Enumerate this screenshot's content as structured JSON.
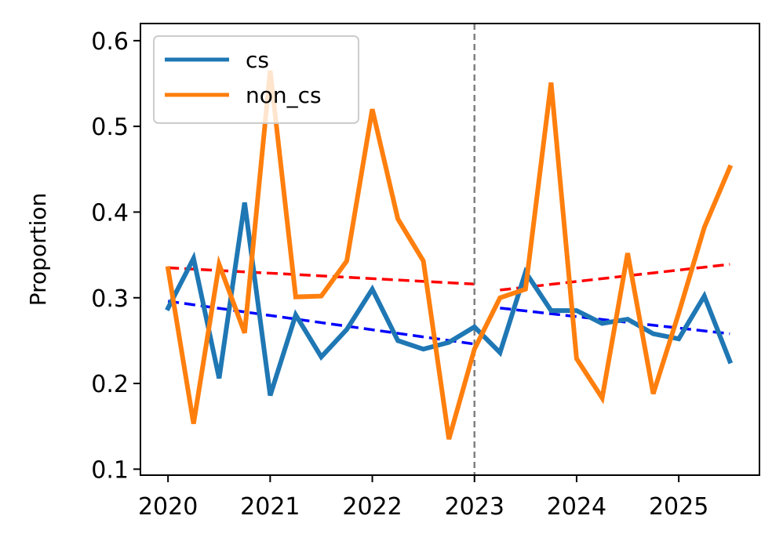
{
  "chart_data": {
    "type": "line",
    "title": "",
    "xlabel": "",
    "ylabel": "Proportion",
    "xlim": [
      2019.73,
      2025.79
    ],
    "ylim": [
      0.093,
      0.62
    ],
    "xticks": [
      2020,
      2021,
      2022,
      2023,
      2024,
      2025
    ],
    "yticks": [
      0.1,
      0.2,
      0.3,
      0.4,
      0.5,
      0.6
    ],
    "ytick_labels": [
      "0.1",
      "0.2",
      "0.3",
      "0.4",
      "0.5",
      "0.6"
    ],
    "x": [
      2020.0,
      2020.25,
      2020.5,
      2020.75,
      2021.0,
      2021.25,
      2021.5,
      2021.75,
      2022.0,
      2022.25,
      2022.5,
      2022.75,
      2023.0,
      2023.25,
      2023.5,
      2023.75,
      2024.0,
      2024.25,
      2024.5,
      2024.75,
      2025.0,
      2025.25,
      2025.5
    ],
    "series": [
      {
        "name": "cs",
        "color": "#1f77b4",
        "values": [
          0.288,
          0.346,
          0.206,
          0.411,
          0.186,
          0.28,
          0.231,
          0.263,
          0.31,
          0.25,
          0.24,
          0.248,
          0.266,
          0.236,
          0.33,
          0.285,
          0.285,
          0.27,
          0.275,
          0.258,
          0.252,
          0.302,
          0.226
        ]
      },
      {
        "name": "non_cs",
        "color": "#ff7f0e",
        "values": [
          0.334,
          0.153,
          0.339,
          0.259,
          0.565,
          0.301,
          0.302,
          0.343,
          0.52,
          0.392,
          0.343,
          0.135,
          0.24,
          0.3,
          0.31,
          0.551,
          0.229,
          0.183,
          0.352,
          0.188,
          0.282,
          0.382,
          0.452
        ]
      }
    ],
    "trend_lines": [
      {
        "name": "cs-trend-pre",
        "color": "#0000ff",
        "x": [
          2020.0,
          2023.0
        ],
        "y": [
          0.296,
          0.246
        ]
      },
      {
        "name": "cs-trend-post",
        "color": "#0000ff",
        "x": [
          2023.25,
          2025.5
        ],
        "y": [
          0.288,
          0.258
        ]
      },
      {
        "name": "non-cs-trend-pre",
        "color": "#ff0000",
        "x": [
          2020.0,
          2023.0
        ],
        "y": [
          0.335,
          0.316
        ]
      },
      {
        "name": "non-cs-trend-post",
        "color": "#ff0000",
        "x": [
          2023.25,
          2025.5
        ],
        "y": [
          0.309,
          0.339
        ]
      }
    ],
    "vline": {
      "x": 2023.0,
      "color": "#808080",
      "style": "dashed"
    },
    "legend": {
      "placement": "top-left",
      "entries": [
        "cs",
        "non_cs"
      ]
    },
    "grid": false
  }
}
